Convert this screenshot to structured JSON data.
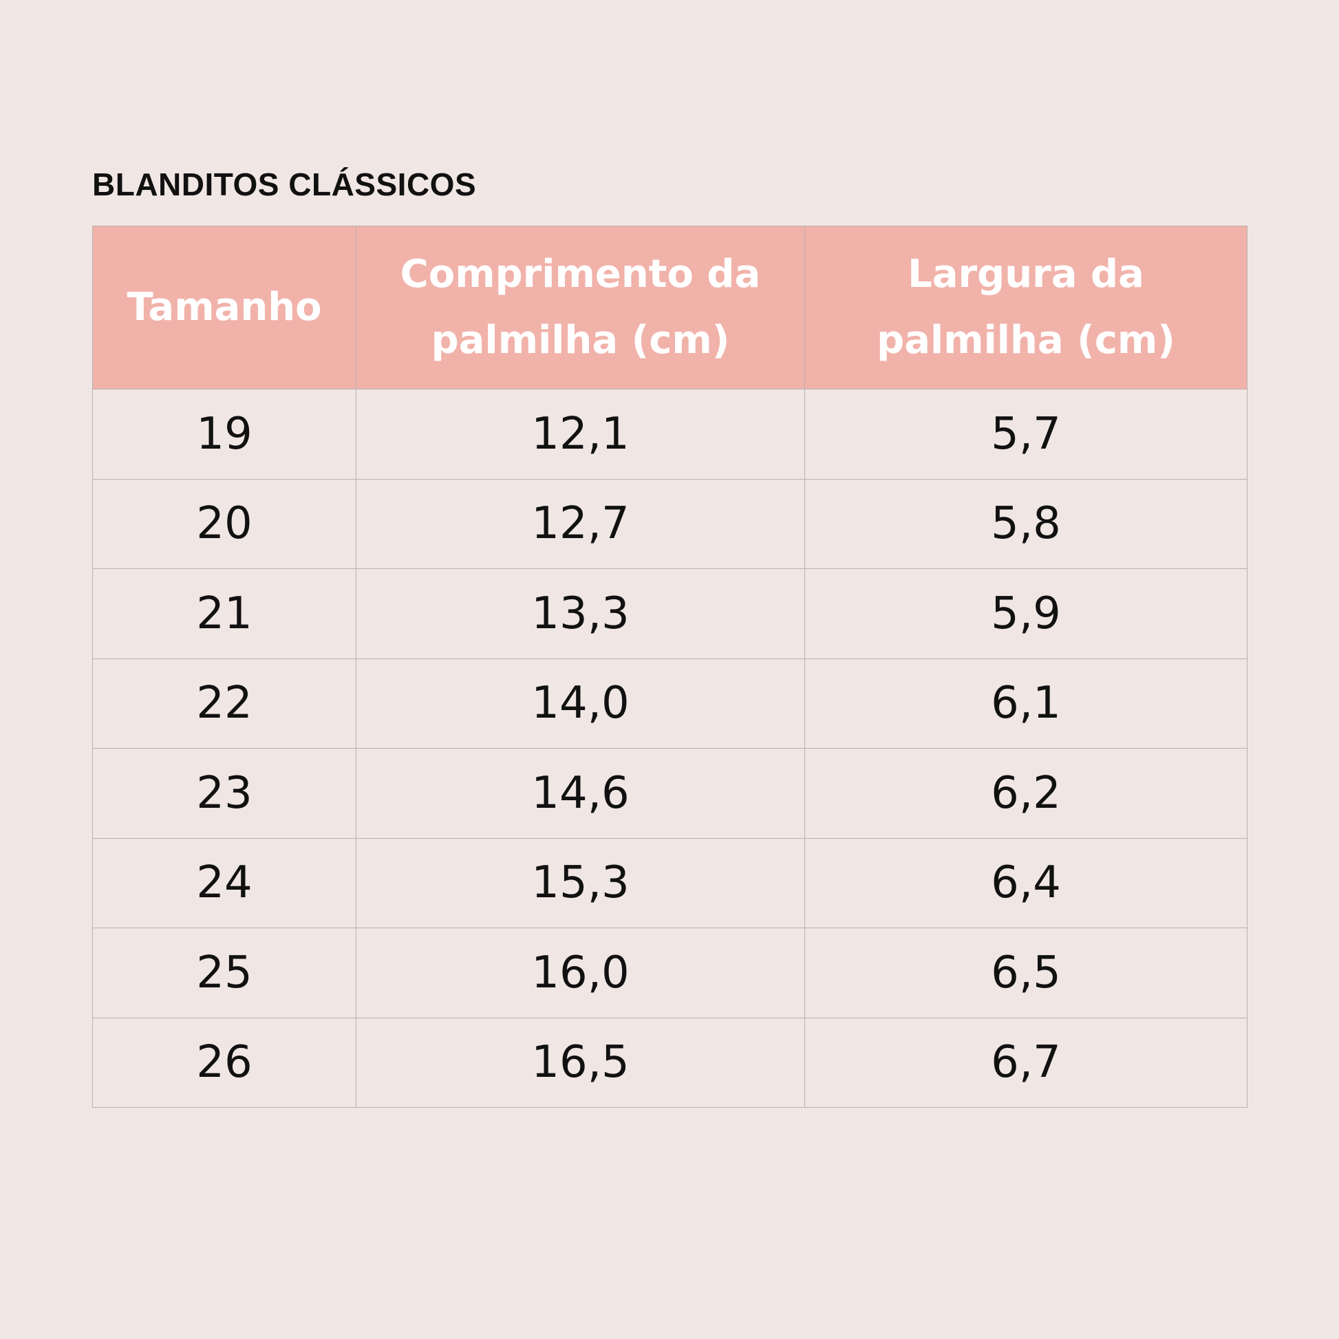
{
  "title": "BLANDITOS CLÁSSICOS",
  "table": {
    "headers": [
      "Tamanho",
      "Comprimento da palmilha (cm)",
      "Largura da palmilha (cm)"
    ],
    "rows": [
      [
        "19",
        "12,1",
        "5,7"
      ],
      [
        "20",
        "12,7",
        "5,8"
      ],
      [
        "21",
        "13,3",
        "5,9"
      ],
      [
        "22",
        "14,0",
        "6,1"
      ],
      [
        "23",
        "14,6",
        "6,2"
      ],
      [
        "24",
        "15,3",
        "6,4"
      ],
      [
        "25",
        "16,0",
        "6,5"
      ],
      [
        "26",
        "16,5",
        "6,7"
      ]
    ]
  },
  "colors": {
    "background": "#f0e6e4",
    "header_background": "#f1b2aa",
    "header_text": "#ffffff",
    "body_text": "#111111",
    "grid_lines": "#b9b1b0"
  }
}
